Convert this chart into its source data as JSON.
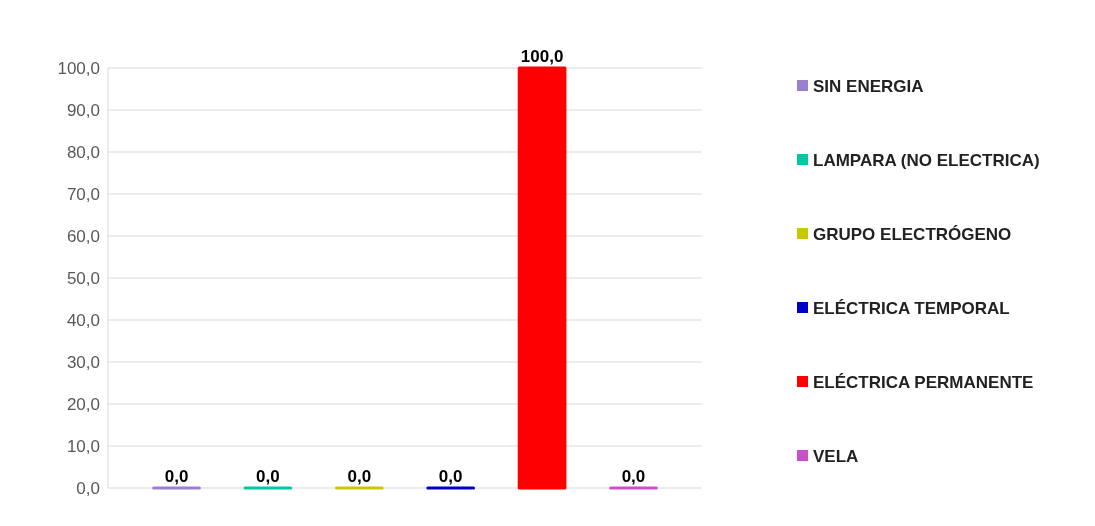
{
  "chart_data": {
    "type": "bar",
    "categories": [
      null,
      null,
      null,
      null,
      null,
      null
    ],
    "series": [
      {
        "name": "SIN ENERGIA",
        "color": "#9b7fd0",
        "values": [
          0,
          null,
          null,
          null,
          null,
          null
        ],
        "value_labels": [
          "0,0",
          null,
          null,
          null,
          null,
          null
        ]
      },
      {
        "name": "LAMPARA (NO ELECTRICA)",
        "color": "#00c8a0",
        "values": [
          null,
          0,
          null,
          null,
          null,
          null
        ],
        "value_labels": [
          null,
          "0,0",
          null,
          null,
          null,
          null
        ]
      },
      {
        "name": "GRUPO ELECTRÓGENO",
        "color": "#c8c800",
        "values": [
          null,
          null,
          0,
          null,
          null,
          null
        ],
        "value_labels": [
          null,
          null,
          "0,0",
          null,
          null,
          null
        ]
      },
      {
        "name": "ELÉCTRICA TEMPORAL",
        "color": "#0000c8",
        "values": [
          null,
          null,
          null,
          0,
          null,
          null
        ],
        "value_labels": [
          null,
          null,
          null,
          "0,0",
          null,
          null
        ]
      },
      {
        "name": "ELÉCTRICA PERMANENTE",
        "color": "#ff0000",
        "values": [
          null,
          null,
          null,
          null,
          100,
          null
        ],
        "value_labels": [
          null,
          null,
          null,
          null,
          "100,0",
          null
        ]
      },
      {
        "name": "VELA",
        "color": "#c850c8",
        "values": [
          null,
          null,
          null,
          null,
          null,
          0
        ],
        "value_labels": [
          null,
          null,
          null,
          null,
          null,
          "0,0"
        ]
      }
    ],
    "ylim": [
      0,
      100
    ],
    "yticks": [
      {
        "value": 0,
        "label": "0,0"
      },
      {
        "value": 10,
        "label": "10,0"
      },
      {
        "value": 20,
        "label": "20,0"
      },
      {
        "value": 30,
        "label": "30,0"
      },
      {
        "value": 40,
        "label": "40,0"
      },
      {
        "value": 50,
        "label": "50,0"
      },
      {
        "value": 60,
        "label": "60,0"
      },
      {
        "value": 70,
        "label": "70,0"
      },
      {
        "value": 80,
        "label": "80,0"
      },
      {
        "value": 90,
        "label": "90,0"
      },
      {
        "value": 100,
        "label": "100,0"
      }
    ],
    "grid": "y",
    "legend": "right"
  }
}
